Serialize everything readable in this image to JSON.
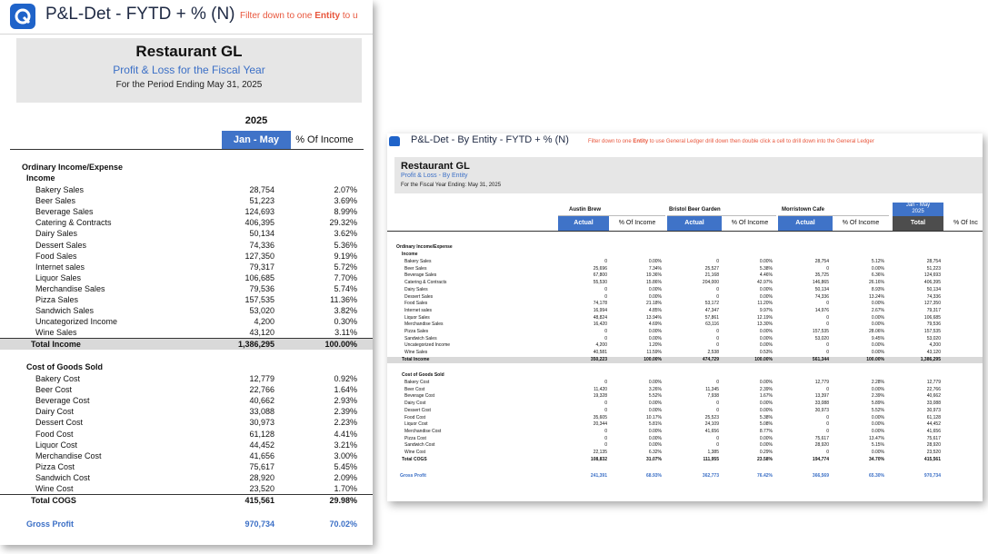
{
  "app": {
    "title": "P&L-Det - FYTD + % (N)",
    "hint_pre": "Filter down to one ",
    "hint_bold": "Entity",
    "hint_post": " to u"
  },
  "report": {
    "title": "Restaurant GL",
    "subtitle": "Profit & Loss for the Fiscal Year",
    "period": "For the Period Ending May 31, 2025",
    "year": "2025",
    "col_range": "Jan - May",
    "col_pct": "% Of Income",
    "section": "Ordinary Income/Expense",
    "income_header": "Income",
    "income": [
      {
        "label": "Bakery Sales",
        "value": "28,754",
        "pct": "2.07%"
      },
      {
        "label": "Beer Sales",
        "value": "51,223",
        "pct": "3.69%"
      },
      {
        "label": "Beverage Sales",
        "value": "124,693",
        "pct": "8.99%"
      },
      {
        "label": "Catering & Contracts",
        "value": "406,395",
        "pct": "29.32%"
      },
      {
        "label": "Dairy Sales",
        "value": "50,134",
        "pct": "3.62%"
      },
      {
        "label": "Dessert Sales",
        "value": "74,336",
        "pct": "5.36%"
      },
      {
        "label": "Food Sales",
        "value": "127,350",
        "pct": "9.19%"
      },
      {
        "label": "Internet sales",
        "value": "79,317",
        "pct": "5.72%"
      },
      {
        "label": "Liquor Sales",
        "value": "106,685",
        "pct": "7.70%"
      },
      {
        "label": "Merchandise Sales",
        "value": "79,536",
        "pct": "5.74%"
      },
      {
        "label": "Pizza Sales",
        "value": "157,535",
        "pct": "11.36%"
      },
      {
        "label": "Sandwich Sales",
        "value": "53,020",
        "pct": "3.82%"
      },
      {
        "label": "Uncategorized Income",
        "value": "4,200",
        "pct": "0.30%"
      },
      {
        "label": "Wine Sales",
        "value": "43,120",
        "pct": "3.11%"
      }
    ],
    "total_income": {
      "label": "Total Income",
      "value": "1,386,295",
      "pct": "100.00%"
    },
    "cogs_header": "Cost of Goods Sold",
    "cogs": [
      {
        "label": "Bakery Cost",
        "value": "12,779",
        "pct": "0.92%"
      },
      {
        "label": "Beer Cost",
        "value": "22,766",
        "pct": "1.64%"
      },
      {
        "label": "Beverage Cost",
        "value": "40,662",
        "pct": "2.93%"
      },
      {
        "label": "Dairy Cost",
        "value": "33,088",
        "pct": "2.39%"
      },
      {
        "label": "Dessert Cost",
        "value": "30,973",
        "pct": "2.23%"
      },
      {
        "label": "Food Cost",
        "value": "61,128",
        "pct": "4.41%"
      },
      {
        "label": "Liquor Cost",
        "value": "44,452",
        "pct": "3.21%"
      },
      {
        "label": "Merchandise Cost",
        "value": "41,656",
        "pct": "3.00%"
      },
      {
        "label": "Pizza Cost",
        "value": "75,617",
        "pct": "5.45%"
      },
      {
        "label": "Sandwich Cost",
        "value": "28,920",
        "pct": "2.09%"
      },
      {
        "label": "Wine Cost",
        "value": "23,520",
        "pct": "1.70%"
      }
    ],
    "total_cogs": {
      "label": "Total COGS",
      "value": "415,561",
      "pct": "29.98%"
    },
    "gross_profit": {
      "label": "Gross Profit",
      "value": "970,734",
      "pct": "70.02%"
    }
  },
  "entity_report": {
    "app_title": "P&L-Det - By Entity - FYTD + % (N)",
    "hint_pre": "Filter down to one ",
    "hint_bold": "Entity",
    "hint_post": " to use General Ledger drill down then double click a cell to drill down into the General Ledger",
    "title": "Restaurant GL",
    "subtitle": "Profit & Loss - By Entity",
    "period": "For the Fiscal Year Ending: May 31, 2025",
    "entities": [
      "Austin Brew",
      "Bristol Beer Garden",
      "Morristown Cafe"
    ],
    "total_col_top": "Jan - May",
    "total_col_year": "2025",
    "col_actual": "Actual",
    "col_pct": "% Of Income",
    "col_total": "Total",
    "col_pct_cut": "% Of Inc",
    "section": "Ordinary Income/Expense",
    "income_header": "Income",
    "income": [
      {
        "label": "Bakery Sales",
        "v": [
          "0",
          "0.00%",
          "0",
          "0.00%",
          "28,754",
          "5.12%",
          "28,754"
        ]
      },
      {
        "label": "Beer Sales",
        "v": [
          "25,696",
          "7.34%",
          "25,527",
          "5.38%",
          "0",
          "0.00%",
          "51,223"
        ]
      },
      {
        "label": "Beverage Sales",
        "v": [
          "67,800",
          "19.36%",
          "21,168",
          "4.46%",
          "35,725",
          "6.36%",
          "124,693"
        ]
      },
      {
        "label": "Catering & Contracts",
        "v": [
          "55,530",
          "15.86%",
          "204,000",
          "42.97%",
          "146,865",
          "26.16%",
          "406,395"
        ]
      },
      {
        "label": "Dairy Sales",
        "v": [
          "0",
          "0.00%",
          "0",
          "0.00%",
          "50,134",
          "8.93%",
          "50,134"
        ]
      },
      {
        "label": "Dessert Sales",
        "v": [
          "0",
          "0.00%",
          "0",
          "0.00%",
          "74,336",
          "13.24%",
          "74,336"
        ]
      },
      {
        "label": "Food Sales",
        "v": [
          "74,178",
          "21.18%",
          "53,172",
          "11.20%",
          "0",
          "0.00%",
          "127,350"
        ]
      },
      {
        "label": "Internet sales",
        "v": [
          "16,994",
          "4.85%",
          "47,347",
          "9.97%",
          "14,976",
          "2.67%",
          "79,317"
        ]
      },
      {
        "label": "Liquor Sales",
        "v": [
          "48,824",
          "13.94%",
          "57,861",
          "12.19%",
          "0",
          "0.00%",
          "106,685"
        ]
      },
      {
        "label": "Merchandise Sales",
        "v": [
          "16,420",
          "4.69%",
          "63,116",
          "13.30%",
          "0",
          "0.00%",
          "79,536"
        ]
      },
      {
        "label": "Pizza Sales",
        "v": [
          "0",
          "0.00%",
          "0",
          "0.00%",
          "157,535",
          "28.06%",
          "157,535"
        ]
      },
      {
        "label": "Sandwich Sales",
        "v": [
          "0",
          "0.00%",
          "0",
          "0.00%",
          "53,020",
          "9.45%",
          "53,020"
        ]
      },
      {
        "label": "Uncategorized Income",
        "v": [
          "4,200",
          "1.20%",
          "0",
          "0.00%",
          "0",
          "0.00%",
          "4,200"
        ]
      },
      {
        "label": "Wine Sales",
        "v": [
          "40,581",
          "11.59%",
          "2,538",
          "0.53%",
          "0",
          "0.00%",
          "43,120"
        ]
      }
    ],
    "total_income": {
      "label": "Total Income",
      "v": [
        "350,223",
        "100.00%",
        "474,729",
        "100.00%",
        "561,344",
        "100.00%",
        "1,386,295"
      ]
    },
    "cogs_header": "Cost of Goods Sold",
    "cogs": [
      {
        "label": "Bakery Cost",
        "v": [
          "0",
          "0.00%",
          "0",
          "0.00%",
          "12,779",
          "2.28%",
          "12,779"
        ]
      },
      {
        "label": "Beer Cost",
        "v": [
          "11,420",
          "3.26%",
          "11,345",
          "2.39%",
          "0",
          "0.00%",
          "22,766"
        ]
      },
      {
        "label": "Beverage Cost",
        "v": [
          "19,328",
          "5.52%",
          "7,938",
          "1.67%",
          "13,397",
          "2.39%",
          "40,662"
        ]
      },
      {
        "label": "Dairy Cost",
        "v": [
          "0",
          "0.00%",
          "0",
          "0.00%",
          "33,088",
          "5.89%",
          "33,088"
        ]
      },
      {
        "label": "Dessert Cost",
        "v": [
          "0",
          "0.00%",
          "0",
          "0.00%",
          "30,973",
          "5.52%",
          "30,973"
        ]
      },
      {
        "label": "Food Cost",
        "v": [
          "35,605",
          "10.17%",
          "25,523",
          "5.38%",
          "0",
          "0.00%",
          "61,128"
        ]
      },
      {
        "label": "Liquor Cost",
        "v": [
          "20,344",
          "5.81%",
          "24,109",
          "5.08%",
          "0",
          "0.00%",
          "44,452"
        ]
      },
      {
        "label": "Merchandise Cost",
        "v": [
          "0",
          "0.00%",
          "41,656",
          "8.77%",
          "0",
          "0.00%",
          "41,656"
        ]
      },
      {
        "label": "Pizza Cost",
        "v": [
          "0",
          "0.00%",
          "0",
          "0.00%",
          "75,617",
          "13.47%",
          "75,617"
        ]
      },
      {
        "label": "Sandwich Cost",
        "v": [
          "0",
          "0.00%",
          "0",
          "0.00%",
          "28,920",
          "5.15%",
          "28,920"
        ]
      },
      {
        "label": "Wine Cost",
        "v": [
          "22,135",
          "6.32%",
          "1,385",
          "0.29%",
          "0",
          "0.00%",
          "23,520"
        ]
      }
    ],
    "total_cogs": {
      "label": "Total COGS",
      "v": [
        "108,832",
        "31.07%",
        "111,955",
        "23.58%",
        "194,774",
        "34.70%",
        "415,561"
      ]
    },
    "gross_profit": {
      "label": "Gross Profit",
      "v": [
        "241,391",
        "68.93%",
        "362,773",
        "76.42%",
        "366,569",
        "65.30%",
        "970,734"
      ]
    }
  }
}
